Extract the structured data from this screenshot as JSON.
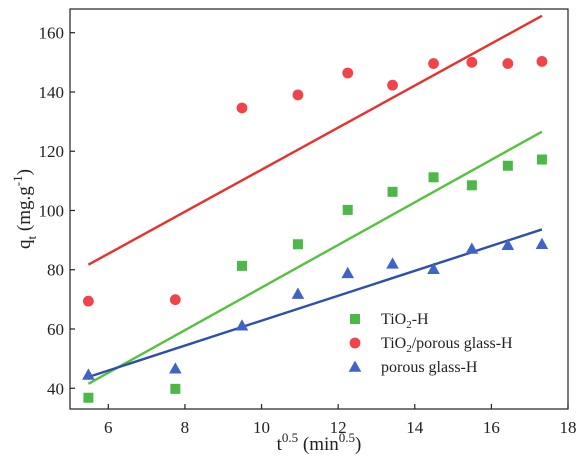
{
  "chart_data": {
    "type": "scatter",
    "title": "",
    "xlabel": {
      "base": "t",
      "sup": "0.5",
      "rest": " (min",
      "sup2": "0.5",
      "end": ")"
    },
    "ylabel": {
      "base": "q",
      "sub": "t",
      "rest": " (mg.g",
      "sup": "-1",
      "end": ")"
    },
    "xlim": [
      5,
      18
    ],
    "ylim": [
      33,
      168
    ],
    "xticks": [
      6,
      8,
      10,
      12,
      14,
      16,
      18
    ],
    "yticks": [
      40,
      60,
      80,
      100,
      120,
      140,
      160
    ],
    "grid": false,
    "legend_position": "bottom-right",
    "series": [
      {
        "name": "TiO2-H",
        "legend": {
          "pre": "TiO",
          "sub": "2",
          "post": "-H"
        },
        "color": "#4cb848",
        "line_color": "#55c23f",
        "marker": "square",
        "x": [
          5.48,
          7.75,
          9.49,
          10.95,
          12.25,
          13.42,
          14.49,
          15.49,
          16.43,
          17.32
        ],
        "y": [
          36.8,
          39.8,
          81.3,
          88.6,
          100.2,
          106.3,
          111.2,
          108.5,
          115.1,
          117.2
        ],
        "fit_line": {
          "x": [
            5.48,
            17.32
          ],
          "y": [
            41.5,
            126.6
          ]
        }
      },
      {
        "name": "TiO2/porous glass-H",
        "legend": {
          "pre": "TiO",
          "sub": "2",
          "post": "/porous glass-H"
        },
        "color": "#f0444a",
        "line_color": "#e8302c",
        "marker": "circle",
        "x": [
          5.48,
          7.75,
          9.49,
          10.95,
          12.25,
          13.42,
          14.49,
          15.49,
          16.43,
          17.32
        ],
        "y": [
          69.4,
          69.9,
          134.6,
          139.0,
          146.4,
          142.3,
          149.6,
          150.0,
          149.6,
          150.3
        ],
        "fit_line": {
          "x": [
            5.48,
            17.32
          ],
          "y": [
            81.7,
            165.7
          ]
        }
      },
      {
        "name": "porous glass-H",
        "legend": {
          "pre": "porous glass-H",
          "sub": "",
          "post": ""
        },
        "color": "#3f64c6",
        "line_color": "#2e4fae",
        "marker": "triangle",
        "x": [
          5.48,
          7.75,
          9.49,
          10.95,
          12.25,
          13.42,
          14.49,
          15.49,
          16.43,
          17.32
        ],
        "y": [
          44.5,
          46.6,
          61.1,
          71.8,
          78.8,
          82.0,
          80.2,
          87.0,
          88.3,
          88.6
        ],
        "fit_line": {
          "x": [
            5.48,
            17.32
          ],
          "y": [
            43.8,
            93.6
          ]
        }
      }
    ]
  }
}
